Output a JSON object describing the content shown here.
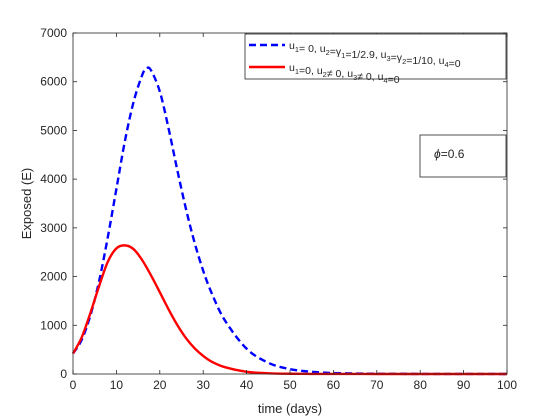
{
  "chart_data": {
    "type": "line",
    "xlabel": "time (days)",
    "ylabel": "Exposed (E)",
    "xlim": [
      0,
      100
    ],
    "ylim": [
      0,
      7000
    ],
    "xticks": [
      0,
      10,
      20,
      30,
      40,
      50,
      60,
      70,
      80,
      90,
      100
    ],
    "yticks": [
      0,
      1000,
      2000,
      3000,
      4000,
      5000,
      6000,
      7000
    ],
    "grid": false,
    "legend_position": "top-right",
    "annotation": {
      "prefix": "ϕ",
      "text": "=0.6"
    },
    "series": [
      {
        "legend": [
          {
            "t": "u"
          },
          {
            "t": "1",
            "sub": true
          },
          {
            "t": "= 0, u"
          },
          {
            "t": "2",
            "sub": true
          },
          {
            "t": "=γ"
          },
          {
            "t": "1",
            "sub": true
          },
          {
            "t": "=1/2.9, u"
          },
          {
            "t": "3",
            "sub": true
          },
          {
            "t": "=γ"
          },
          {
            "t": "2",
            "sub": true
          },
          {
            "t": "=1/10, u"
          },
          {
            "t": "4",
            "sub": true
          },
          {
            "t": "=0"
          }
        ],
        "color": "#0000ff",
        "style": "dashed",
        "x": [
          0,
          2,
          4,
          6,
          8,
          10,
          12,
          14,
          16,
          17,
          18,
          20,
          22,
          24,
          26,
          28,
          30,
          32,
          35,
          40,
          45,
          50,
          55,
          60,
          65,
          70,
          80,
          90,
          100
        ],
        "y": [
          420,
          700,
          1200,
          1900,
          2800,
          3800,
          4800,
          5600,
          6150,
          6280,
          6230,
          5800,
          5050,
          4200,
          3400,
          2700,
          2120,
          1650,
          1100,
          520,
          230,
          100,
          45,
          20,
          10,
          5,
          2,
          1,
          0
        ]
      },
      {
        "legend": [
          {
            "t": "u"
          },
          {
            "t": "1",
            "sub": true
          },
          {
            "t": "=0, u"
          },
          {
            "t": "2",
            "sub": true
          },
          {
            "t": "≠ 0, u"
          },
          {
            "t": "3",
            "sub": true
          },
          {
            "t": "≠ 0, u"
          },
          {
            "t": "4",
            "sub": true
          },
          {
            "t": "=0"
          }
        ],
        "color": "#ff0000",
        "style": "solid",
        "x": [
          0,
          2,
          4,
          6,
          8,
          10,
          12,
          14,
          16,
          18,
          20,
          22,
          24,
          26,
          28,
          30,
          32,
          35,
          40,
          45,
          50,
          55,
          60,
          70,
          80,
          90,
          100
        ],
        "y": [
          420,
          750,
          1250,
          1800,
          2300,
          2580,
          2640,
          2560,
          2330,
          2020,
          1680,
          1330,
          1010,
          740,
          530,
          370,
          250,
          140,
          45,
          15,
          5,
          2,
          1,
          0,
          0,
          0,
          0
        ]
      }
    ]
  }
}
